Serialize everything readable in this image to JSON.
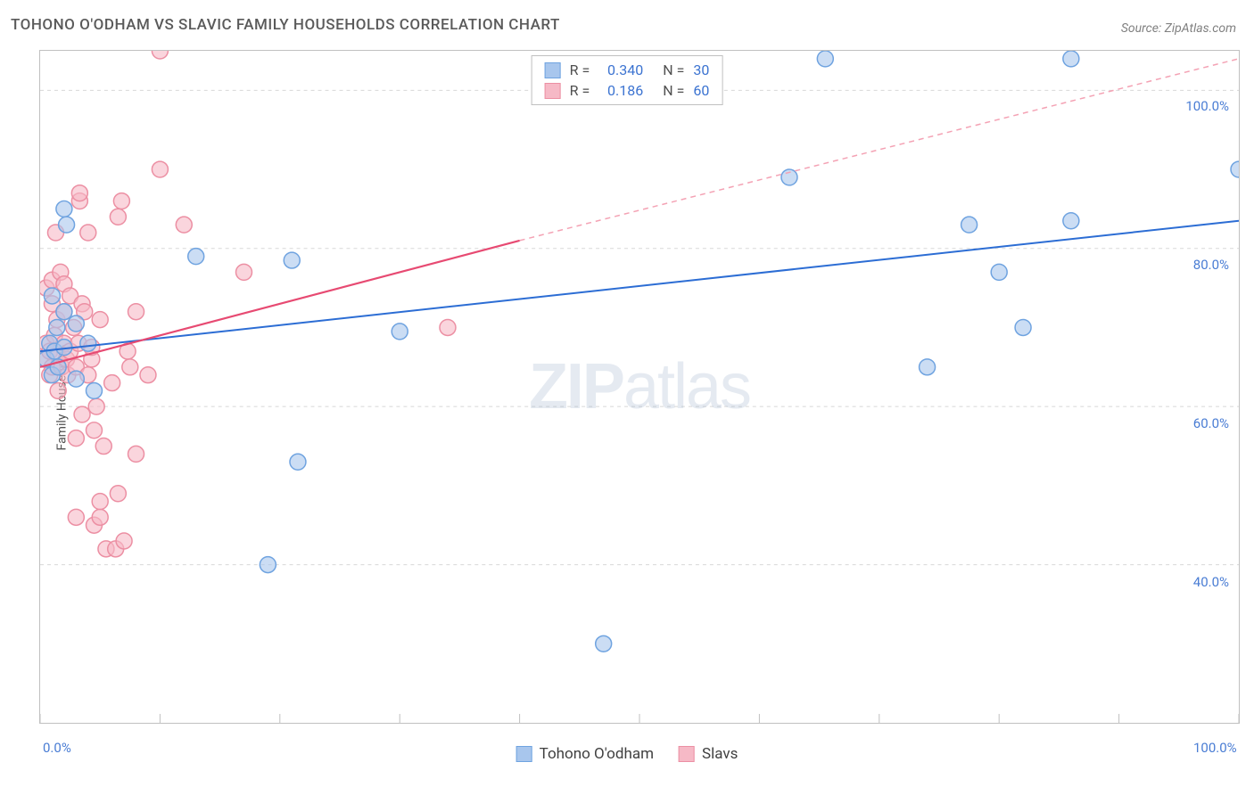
{
  "title": "TOHONO O'ODHAM VS SLAVIC FAMILY HOUSEHOLDS CORRELATION CHART",
  "source": "Source: ZipAtlas.com",
  "y_axis_label": "Family Households",
  "watermark_bold": "ZIP",
  "watermark_light": "atlas",
  "chart": {
    "type": "scatter",
    "background_color": "#ffffff",
    "frame_color": "#c0c0c0",
    "grid_color": "#d8d8d8",
    "grid_dash": "4,4",
    "xlim": [
      0,
      100
    ],
    "ylim": [
      20,
      105
    ],
    "x_ticks": [
      0,
      10,
      20,
      30,
      40,
      50,
      60,
      70,
      80,
      90,
      100
    ],
    "x_tick_labels": {
      "0": "0.0%",
      "100": "100.0%"
    },
    "y_grid": [
      40,
      60,
      80,
      100
    ],
    "y_tick_labels": [
      "40.0%",
      "60.0%",
      "80.0%",
      "100.0%"
    ],
    "series": [
      {
        "name": "Tohono O'odham",
        "color_fill": "#a8c6ed",
        "color_stroke": "#6fa3e0",
        "marker_radius": 9,
        "fill_opacity": 0.6,
        "R": "0.340",
        "N": "30",
        "trend_solid": {
          "x1": 0,
          "y1": 67,
          "x2": 100,
          "y2": 83.5,
          "color": "#2c6dd4",
          "width": 2
        },
        "points": [
          [
            0.5,
            66
          ],
          [
            0.8,
            68
          ],
          [
            1,
            64
          ],
          [
            1,
            74
          ],
          [
            1.2,
            67
          ],
          [
            1.4,
            70
          ],
          [
            1.5,
            65
          ],
          [
            2,
            67.5
          ],
          [
            2,
            72
          ],
          [
            2,
            85
          ],
          [
            2.2,
            83
          ],
          [
            3,
            63.5
          ],
          [
            3,
            70.5
          ],
          [
            4,
            68
          ],
          [
            4.5,
            62
          ],
          [
            13,
            79
          ],
          [
            19,
            40
          ],
          [
            21,
            78.5
          ],
          [
            21.5,
            53
          ],
          [
            30,
            69.5
          ],
          [
            47,
            30
          ],
          [
            62.5,
            89
          ],
          [
            65.5,
            104
          ],
          [
            74,
            65
          ],
          [
            77.5,
            83
          ],
          [
            80,
            77
          ],
          [
            82,
            70
          ],
          [
            86,
            104
          ],
          [
            86,
            83.5
          ],
          [
            100,
            90
          ]
        ]
      },
      {
        "name": "Slavs",
        "color_fill": "#f6b9c6",
        "color_stroke": "#ec8fa3",
        "marker_radius": 9,
        "fill_opacity": 0.6,
        "R": "0.186",
        "N": "60",
        "trend_solid": {
          "x1": 0,
          "y1": 65,
          "x2": 40,
          "y2": 81,
          "color": "#e74a72",
          "width": 2.2
        },
        "trend_dashed": {
          "x1": 40,
          "y1": 81,
          "x2": 100,
          "y2": 104,
          "color": "#f4a2b4",
          "width": 1.5,
          "dash": "6,5"
        },
        "points": [
          [
            0.3,
            66
          ],
          [
            0.5,
            68
          ],
          [
            0.5,
            75
          ],
          [
            0.8,
            67
          ],
          [
            0.8,
            64
          ],
          [
            1,
            65
          ],
          [
            1,
            73
          ],
          [
            1,
            76
          ],
          [
            1.2,
            69
          ],
          [
            1.3,
            82
          ],
          [
            1.4,
            71
          ],
          [
            1.5,
            66.5
          ],
          [
            1.5,
            62
          ],
          [
            1.7,
            77
          ],
          [
            1.8,
            65
          ],
          [
            2,
            68
          ],
          [
            2,
            72
          ],
          [
            2,
            75.5
          ],
          [
            2.2,
            66
          ],
          [
            2.3,
            64
          ],
          [
            2.5,
            74
          ],
          [
            2.5,
            67
          ],
          [
            2.8,
            70
          ],
          [
            3,
            65
          ],
          [
            3,
            56
          ],
          [
            3,
            46
          ],
          [
            3.2,
            68
          ],
          [
            3.3,
            86
          ],
          [
            3.3,
            87
          ],
          [
            3.5,
            59
          ],
          [
            3.5,
            73
          ],
          [
            3.7,
            72
          ],
          [
            4,
            64
          ],
          [
            4,
            82
          ],
          [
            4.3,
            66
          ],
          [
            4.3,
            67.5
          ],
          [
            4.5,
            45
          ],
          [
            4.5,
            57
          ],
          [
            4.7,
            60
          ],
          [
            5,
            71
          ],
          [
            5,
            46
          ],
          [
            5,
            48
          ],
          [
            5.3,
            55
          ],
          [
            5.5,
            42
          ],
          [
            6,
            63
          ],
          [
            6.3,
            42
          ],
          [
            6.5,
            84
          ],
          [
            6.5,
            49
          ],
          [
            6.8,
            86
          ],
          [
            7,
            43
          ],
          [
            7.3,
            67
          ],
          [
            7.5,
            65
          ],
          [
            8,
            54
          ],
          [
            8,
            72
          ],
          [
            9,
            64
          ],
          [
            10,
            90
          ],
          [
            10,
            105
          ],
          [
            12,
            83
          ],
          [
            17,
            77
          ],
          [
            34,
            70
          ]
        ]
      }
    ]
  },
  "bottom_legend": [
    {
      "label": "Tohono O'odham",
      "fill": "#a8c6ed",
      "stroke": "#6fa3e0"
    },
    {
      "label": "Slavs",
      "fill": "#f6b9c6",
      "stroke": "#ec8fa3"
    }
  ]
}
